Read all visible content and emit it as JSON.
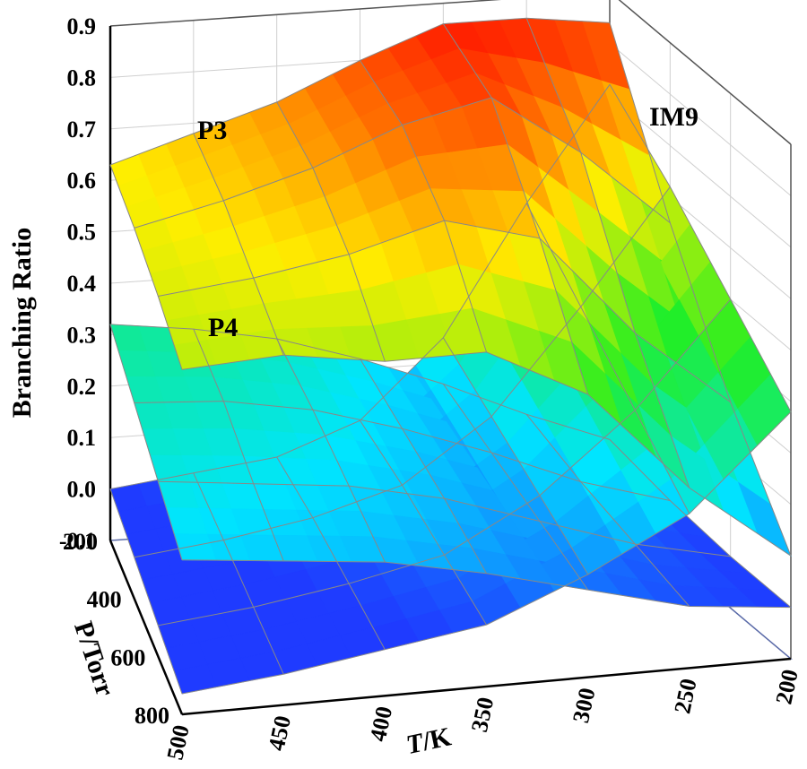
{
  "chart_data": {
    "type": "surface3d",
    "zlabel": "Branching Ratio",
    "xlabel_italic": "T",
    "xlabel_rest": "/K",
    "ylabel": "P/Torr",
    "z_ticks": [
      "-0.1",
      "0.0",
      "0.1",
      "0.2",
      "0.3",
      "0.4",
      "0.5",
      "0.6",
      "0.7",
      "0.8",
      "0.9"
    ],
    "T_ticks": [
      "500",
      "450",
      "400",
      "350",
      "300",
      "250",
      "200"
    ],
    "P_ticks": [
      "200",
      "400",
      "600",
      "800"
    ],
    "T_values": [
      500,
      450,
      400,
      350,
      300,
      250,
      200
    ],
    "P_values": [
      200,
      400,
      600,
      800
    ],
    "zlim": [
      -0.1,
      0.9
    ],
    "colormap": [
      "#1f3bff",
      "#00e5ff",
      "#22ee22",
      "#ffee00",
      "#ff2200"
    ],
    "series": [
      {
        "name": "P3",
        "z": [
          [
            0.63,
            0.62,
            0.6,
            0.57
          ],
          [
            0.68,
            0.66,
            0.62,
            0.58
          ],
          [
            0.73,
            0.71,
            0.65,
            0.55
          ],
          [
            0.8,
            0.78,
            0.7,
            0.55
          ],
          [
            0.86,
            0.82,
            0.65,
            0.45
          ],
          [
            0.86,
            0.7,
            0.45,
            0.25
          ],
          [
            0.84,
            0.55,
            0.3,
            0.1
          ]
        ]
      },
      {
        "name": "P4",
        "z": [
          [
            0.32,
            0.28,
            0.24,
            0.2
          ],
          [
            0.3,
            0.27,
            0.22,
            0.18
          ],
          [
            0.27,
            0.24,
            0.2,
            0.16
          ],
          [
            0.22,
            0.19,
            0.16,
            0.12
          ],
          [
            0.16,
            0.13,
            0.1,
            0.07
          ],
          [
            0.09,
            0.06,
            0.04,
            0.02
          ],
          [
            0.03,
            0.01,
            0.0,
            0.0
          ]
        ]
      },
      {
        "name": "IM9",
        "z": [
          [
            0.0,
            -0.02,
            -0.04,
            -0.06
          ],
          [
            0.02,
            0.0,
            -0.02,
            -0.04
          ],
          [
            0.04,
            0.03,
            0.01,
            -0.01
          ],
          [
            0.1,
            0.08,
            0.05,
            0.02
          ],
          [
            0.25,
            0.2,
            0.15,
            0.1
          ],
          [
            0.5,
            0.4,
            0.3,
            0.2
          ],
          [
            0.72,
            0.62,
            0.5,
            0.38
          ]
        ]
      }
    ]
  }
}
